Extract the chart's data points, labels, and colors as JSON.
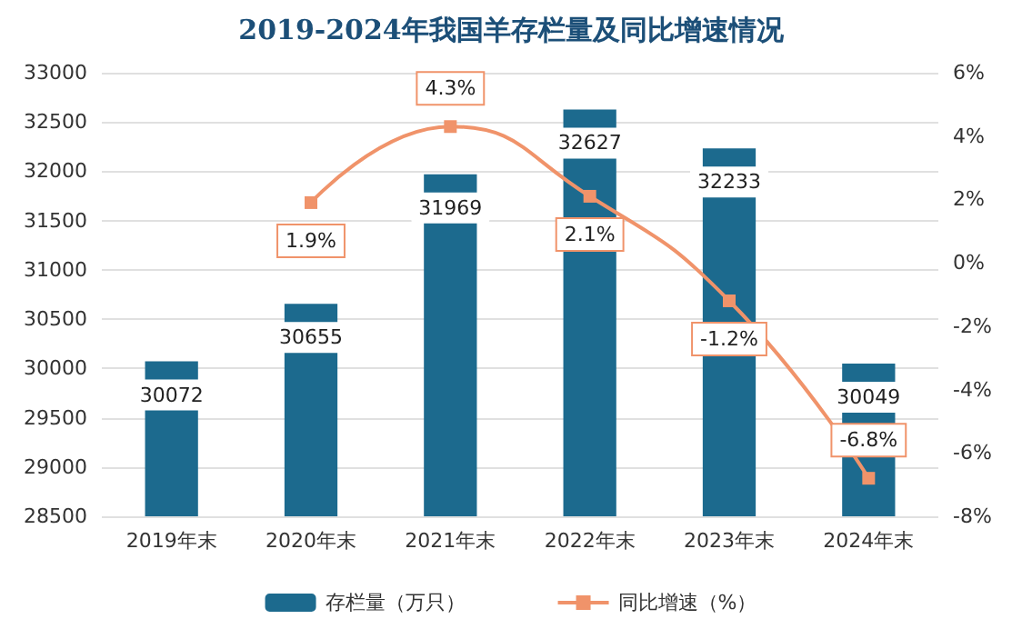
{
  "chart_data": {
    "type": "bar",
    "title": "2019-2024年我国羊存栏量及同比增速情况",
    "categories": [
      "2019年末",
      "2020年末",
      "2021年末",
      "2022年末",
      "2023年末",
      "2024年末"
    ],
    "series": [
      {
        "name": "存栏量（万只）",
        "color": "#1c6a8e",
        "values": [
          30072,
          30655,
          31969,
          32627,
          32233,
          30049
        ],
        "value_labels": [
          "30072",
          "30655",
          "31969",
          "32627",
          "32233",
          "30049"
        ]
      },
      {
        "name": "同比增速（%）",
        "type": "line",
        "axis": "y2",
        "color": "#f0936a",
        "marker": "square",
        "values": [
          null,
          1.9,
          4.3,
          2.1,
          -1.2,
          -6.8
        ],
        "value_labels": [
          null,
          "1.9%",
          "4.3%",
          "2.1%",
          "-1.2%",
          "-6.8%"
        ]
      }
    ],
    "ylim": [
      28500,
      33000
    ],
    "yticks": [
      28500,
      29000,
      29500,
      30000,
      30500,
      31000,
      31500,
      32000,
      32500,
      33000
    ],
    "y2lim": [
      -8,
      6
    ],
    "y2ticks": [
      {
        "value": -8,
        "label": "-8%"
      },
      {
        "value": -6,
        "label": "-6%"
      },
      {
        "value": -4,
        "label": "-4%"
      },
      {
        "value": -2,
        "label": "-2%"
      },
      {
        "value": 0,
        "label": "0%"
      },
      {
        "value": 2,
        "label": "2%"
      },
      {
        "value": 4,
        "label": "4%"
      },
      {
        "value": 6,
        "label": "6%"
      }
    ],
    "grid": "y",
    "legend": "bottom"
  }
}
